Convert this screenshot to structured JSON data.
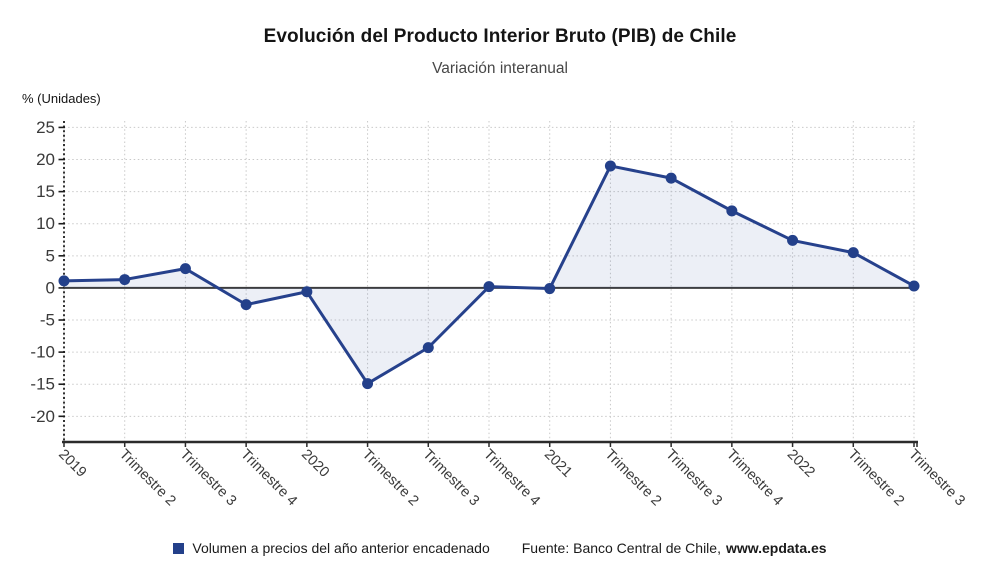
{
  "chart_data": {
    "type": "line",
    "title": "Evolución del Producto Interior Bruto (PIB) de Chile",
    "subtitle": "Variación interanual",
    "ylabel": "% (Unidades)",
    "categories": [
      "2019",
      "Trimestre 2",
      "Trimestre 3",
      "Trimestre 4",
      "2020",
      "Trimestre 2",
      "Trimestre 3",
      "Trimestre 4",
      "2021",
      "Trimestre 2",
      "Trimestre 3",
      "Trimestre 4",
      "2022",
      "Trimestre 2",
      "Trimestre 3"
    ],
    "series": [
      {
        "name": "Volumen a precios del año anterior encadenado",
        "values": [
          1.1,
          1.3,
          3.0,
          -2.6,
          -0.6,
          -14.9,
          -9.3,
          0.2,
          -0.1,
          19.0,
          17.1,
          12.0,
          7.4,
          5.5,
          0.3
        ]
      }
    ],
    "ylim": [
      -24,
      26
    ],
    "yticks": [
      -20,
      -15,
      -10,
      -5,
      0,
      5,
      10,
      15,
      20,
      25
    ],
    "grid": true,
    "legend_position": "bottom",
    "line_color": "#26418C",
    "marker_color": "#23408A",
    "fill_color": "rgba(70,100,170,0.10)"
  },
  "footer": {
    "source_prefix": "Fuente: Banco Central de Chile,",
    "source_site": "www.epdata.es"
  }
}
